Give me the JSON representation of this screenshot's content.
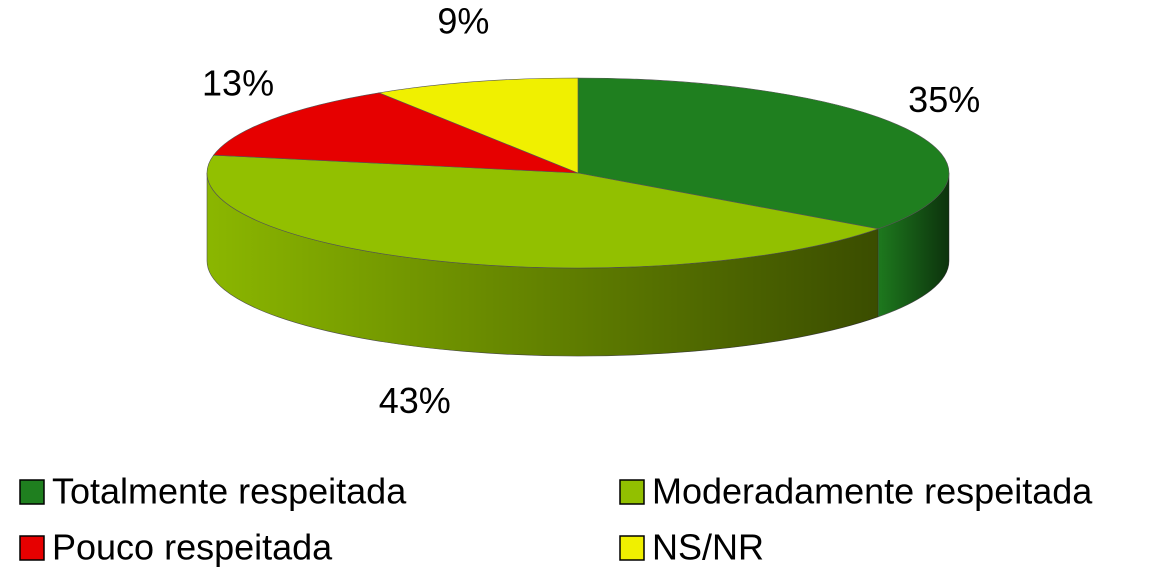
{
  "chart_data": {
    "type": "pie",
    "categories": [
      "Totalmente respeitada",
      "Moderadamente respeitada",
      "Pouco respeitada",
      "NS/NR"
    ],
    "values": [
      35,
      43,
      13,
      9
    ],
    "value_labels": [
      "35%",
      "43%",
      "13%",
      "9%"
    ],
    "colors": [
      "#1f7f1f",
      "#92c000",
      "#e60000",
      "#f0f000"
    ],
    "legend": "bottom"
  }
}
